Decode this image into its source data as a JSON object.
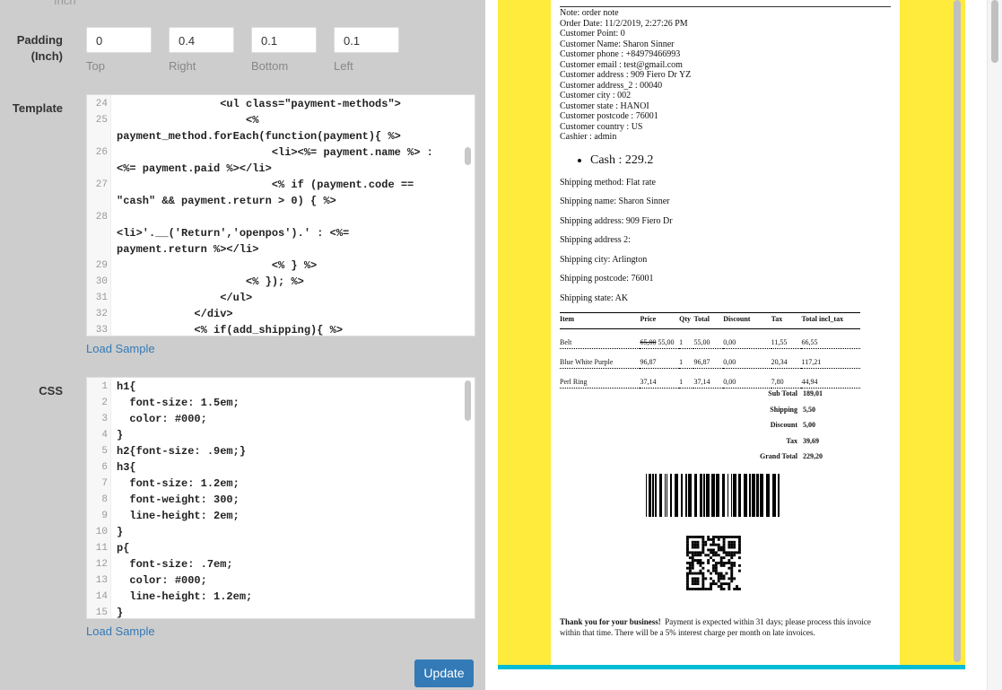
{
  "top_label_partial": "Inch",
  "padding": {
    "label": "Padding (Inch)",
    "fields": [
      {
        "caption": "Top",
        "value": "0"
      },
      {
        "caption": "Right",
        "value": "0.4"
      },
      {
        "caption": "Bottom",
        "value": "0.1"
      },
      {
        "caption": "Left",
        "value": "0.1"
      }
    ]
  },
  "template": {
    "label": "Template",
    "load_sample": "Load Sample",
    "lines": [
      {
        "n": "24",
        "code": "                <ul class=\"payment-methods\">"
      },
      {
        "n": "25",
        "code": "                    <%\npayment_method.forEach(function(payment){ %>"
      },
      {
        "n": "26",
        "code": "                        <li><%= payment.name %> :\n<%= payment.paid %></li>"
      },
      {
        "n": "27",
        "code": "                        <% if (payment.code ==\n\"cash\" && payment.return > 0) { %>"
      },
      {
        "n": "28",
        "code": "\n<li>'.__('Return','openpos').' : <%=\npayment.return %></li>"
      },
      {
        "n": "29",
        "code": "                        <% } %>"
      },
      {
        "n": "30",
        "code": "                    <% }); %>"
      },
      {
        "n": "31",
        "code": "                </ul>"
      },
      {
        "n": "32",
        "code": "            </div>"
      },
      {
        "n": "33",
        "code": "            <% if(add_shipping){ %>"
      }
    ]
  },
  "css": {
    "label": "CSS",
    "load_sample": "Load Sample",
    "lines": [
      {
        "n": "1",
        "code": "h1{"
      },
      {
        "n": "2",
        "code": "  font-size: 1.5em;"
      },
      {
        "n": "3",
        "code": "  color: #000;"
      },
      {
        "n": "4",
        "code": "}"
      },
      {
        "n": "5",
        "code": "h2{font-size: .9em;}"
      },
      {
        "n": "6",
        "code": "h3{"
      },
      {
        "n": "7",
        "code": "  font-size: 1.2em;"
      },
      {
        "n": "8",
        "code": "  font-weight: 300;"
      },
      {
        "n": "9",
        "code": "  line-height: 2em;"
      },
      {
        "n": "10",
        "code": "}"
      },
      {
        "n": "11",
        "code": "p{"
      },
      {
        "n": "12",
        "code": "  font-size: .7em;"
      },
      {
        "n": "13",
        "code": "  color: #000;"
      },
      {
        "n": "14",
        "code": "  line-height: 1.2em;"
      },
      {
        "n": "15",
        "code": "}"
      }
    ]
  },
  "update_label": "Update",
  "receipt": {
    "info": [
      "Note: order note",
      "Order Date: 11/2/2019, 2:27:26 PM",
      "Customer Point: 0",
      "Customer Name: Sharon Sinner",
      "Customer phone : +84979466993",
      "Customer email : test@gmail.com",
      "Customer address : 909 Fiero Dr YZ",
      "Customer address_2 : 00040",
      "Customer city : 002",
      "Customer state : HANOI",
      "Customer postcode : 76001",
      "Customer country : US",
      "Cashier : admin"
    ],
    "payment": "Cash : 229.2",
    "shipping": [
      "Shipping method: Flat rate",
      "Shipping name: Sharon Sinner",
      "Shipping address: 909 Fiero Dr",
      "Shipping address 2:",
      "Shipping city: Arlington",
      "Shipping postcode: 76001",
      "Shipping state: AK"
    ],
    "headers": [
      "Item",
      "Price",
      "Qty",
      "Total",
      "Discount",
      "Tax",
      "Total incl_tax"
    ],
    "rows": [
      {
        "item": "Belt",
        "old_price": "65,00",
        "price": "55,00",
        "qty": "1",
        "total": "55,00",
        "discount": "0,00",
        "tax": "11,55",
        "total_incl": "66,55"
      },
      {
        "item": "Blue White Purple",
        "old_price": "",
        "price": "96,87",
        "qty": "1",
        "total": "96,87",
        "discount": "0,00",
        "tax": "20,34",
        "total_incl": "117,21"
      },
      {
        "item": "Perl Ring",
        "old_price": "",
        "price": "37,14",
        "qty": "1",
        "total": "37,14",
        "discount": "0,00",
        "tax": "7,80",
        "total_incl": "44,94"
      }
    ],
    "totals": [
      {
        "label": "Sub Total",
        "value": "189,01"
      },
      {
        "label": "Shipping",
        "value": "5,50"
      },
      {
        "label": "Discount",
        "value": "5,00"
      },
      {
        "label": "Tax",
        "value": "39,69"
      },
      {
        "label": "Grand Total",
        "value": "229,20"
      }
    ],
    "footer_bold": "Thank you for your business!",
    "footer_text": "Payment is expected within 31 days; please process this invoice within that time. There will be a 5% interest charge per month on late invoices."
  },
  "colors": {
    "frame": "#ffeb3b",
    "frame_border": "#00bcd4",
    "button": "#337ab7"
  }
}
